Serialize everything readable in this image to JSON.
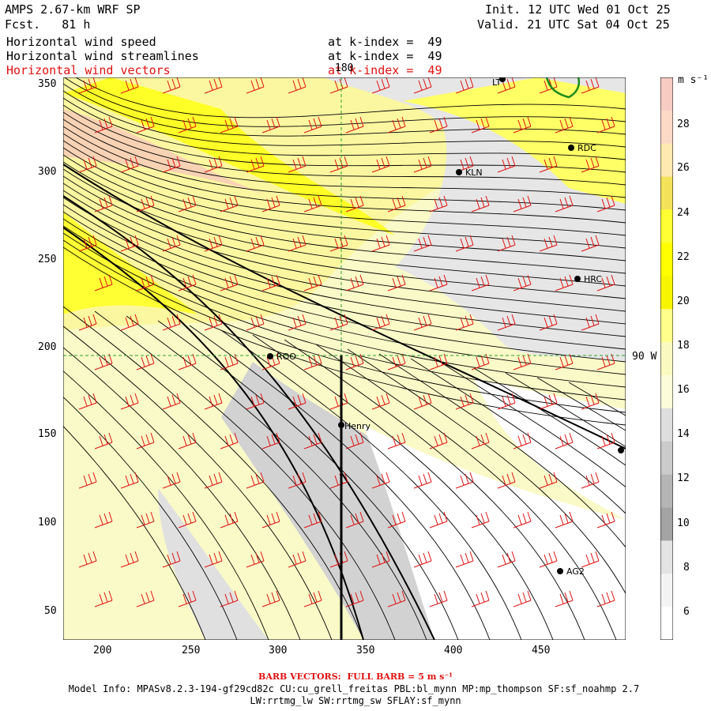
{
  "header": {
    "model_title": "AMPS 2.67-km WRF SP",
    "forecast": "Fcst.   81 h",
    "init": "Init. 12 UTC Wed 01 Oct 25",
    "valid": "Valid. 21 UTC Sat 04 Oct 25",
    "fields": [
      {
        "name": "Horizontal wind speed",
        "level": "at k-index =  49"
      },
      {
        "name": "Horizontal wind streamlines",
        "level": "at k-index =  49"
      },
      {
        "name": "Horizontal wind vectors",
        "level": "at k-index =  49",
        "color": "#e01010"
      }
    ]
  },
  "map": {
    "x_ticks": [
      "200",
      "250",
      "300",
      "350",
      "400",
      "450"
    ],
    "y_ticks": [
      "350",
      "300",
      "250",
      "200",
      "150",
      "100",
      "50"
    ],
    "meridian_label": "180",
    "parallel_label": "90 W",
    "stations": [
      "KLN",
      "RDC",
      "HRC",
      "ROO",
      "Henry",
      "AG2",
      "LT"
    ]
  },
  "colorbar": {
    "unit": "m s⁻¹",
    "labels": [
      "28",
      "26",
      "24",
      "22",
      "20",
      "18",
      "16",
      "14",
      "12",
      "10",
      "8",
      "6"
    ],
    "colors": [
      "#f8cbc3",
      "#fbd9c6",
      "#ffe9b0",
      "#f3e25a",
      "#ffff33",
      "#ffff00",
      "#f8f500",
      "#ffff8c",
      "#fafac0",
      "#fbfbda",
      "#dedede",
      "#cbcbcb",
      "#b5b5b5",
      "#a3a3a3",
      "#e4e4e4",
      "#f4f4f4",
      "#ffffff"
    ]
  },
  "footer": {
    "barb_note": "BARB VECTORS:  FULL BARB = 5 m s⁻¹",
    "model_info": "Model Info: MPASv8.2.3-194-gf29cd82c CU:cu_grell_freitas PBL:bl_mynn MP:mp_thompson SF:sf_noahmp 2.7",
    "model_info2": "LW:rrtmg_lw SW:rrtmg_sw SFLAY:sf_mynn"
  }
}
